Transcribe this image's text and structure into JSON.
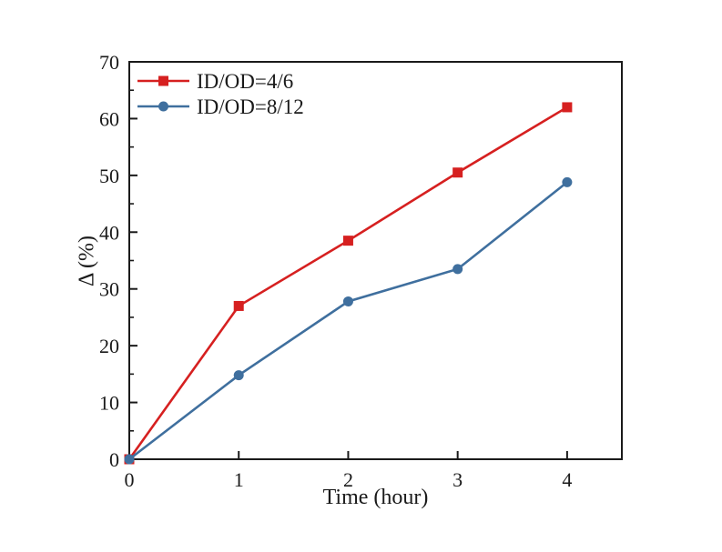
{
  "chart_data": {
    "type": "line",
    "title": "",
    "xlabel": "Time (hour)",
    "ylabel": "Δ (%)",
    "x": [
      0,
      1,
      2,
      3,
      4
    ],
    "series": [
      {
        "name": "ID/OD=4/6",
        "color": "#d62020",
        "marker": "square",
        "values": [
          0,
          27,
          38.5,
          50.5,
          62
        ]
      },
      {
        "name": "ID/OD=8/12",
        "color": "#3f6f9e",
        "marker": "circle",
        "values": [
          0,
          14.8,
          27.8,
          33.5,
          48.8
        ]
      }
    ],
    "xlim": [
      0,
      4.5
    ],
    "ylim": [
      0,
      70
    ],
    "xticks": [
      0,
      1,
      2,
      3,
      4
    ],
    "yticks_major": [
      0,
      10,
      20,
      30,
      40,
      50,
      60,
      70
    ],
    "yticks_minor": [
      5,
      15,
      25,
      35,
      45,
      55,
      65
    ],
    "grid": false,
    "legend_position": "top-left",
    "axis_color": "#1a1a1a"
  }
}
